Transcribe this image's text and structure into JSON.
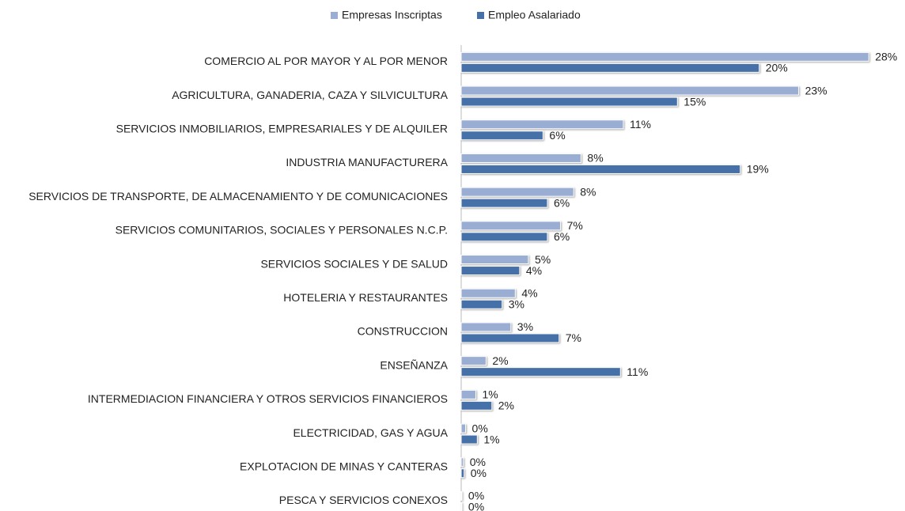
{
  "chart_data": {
    "type": "bar",
    "orientation": "horizontal",
    "categories": [
      "COMERCIO AL POR MAYOR Y AL POR MENOR",
      "AGRICULTURA, GANADERIA, CAZA Y SILVICULTURA",
      "SERVICIOS INMOBILIARIOS, EMPRESARIALES Y DE ALQUILER",
      "INDUSTRIA MANUFACTURERA",
      "SERVICIOS DE TRANSPORTE, DE ALMACENAMIENTO Y DE COMUNICACIONES",
      "SERVICIOS COMUNITARIOS, SOCIALES Y PERSONALES N.C.P.",
      "SERVICIOS SOCIALES Y DE SALUD",
      "HOTELERIA Y RESTAURANTES",
      "CONSTRUCCION",
      "ENSEÑANZA",
      "INTERMEDIACION FINANCIERA Y OTROS SERVICIOS FINANCIEROS",
      "ELECTRICIDAD, GAS Y AGUA",
      "EXPLOTACION DE MINAS Y CANTERAS",
      "PESCA Y SERVICIOS CONEXOS"
    ],
    "series": [
      {
        "name": "Empresas Inscriptas",
        "color": "#9aaed4",
        "values": [
          27.9,
          23.1,
          11.1,
          8.2,
          7.7,
          6.8,
          4.6,
          3.7,
          3.4,
          1.7,
          1.0,
          0.3,
          0.15,
          0.05
        ],
        "value_labels": [
          "28%",
          "23%",
          "11%",
          "8%",
          "8%",
          "7%",
          "5%",
          "4%",
          "3%",
          "2%",
          "1%",
          "0%",
          "0%",
          "0%"
        ]
      },
      {
        "name": "Empleo Asalariado",
        "color": "#4670a8",
        "values": [
          20.4,
          14.8,
          5.6,
          19.1,
          5.9,
          5.9,
          4.0,
          2.8,
          6.7,
          10.9,
          2.1,
          1.1,
          0.2,
          0.05
        ],
        "value_labels": [
          "20%",
          "15%",
          "6%",
          "19%",
          "6%",
          "6%",
          "4%",
          "3%",
          "7%",
          "11%",
          "2%",
          "1%",
          "0%",
          "0%"
        ]
      }
    ],
    "xlim": [
      0,
      30
    ],
    "legend": "top"
  }
}
